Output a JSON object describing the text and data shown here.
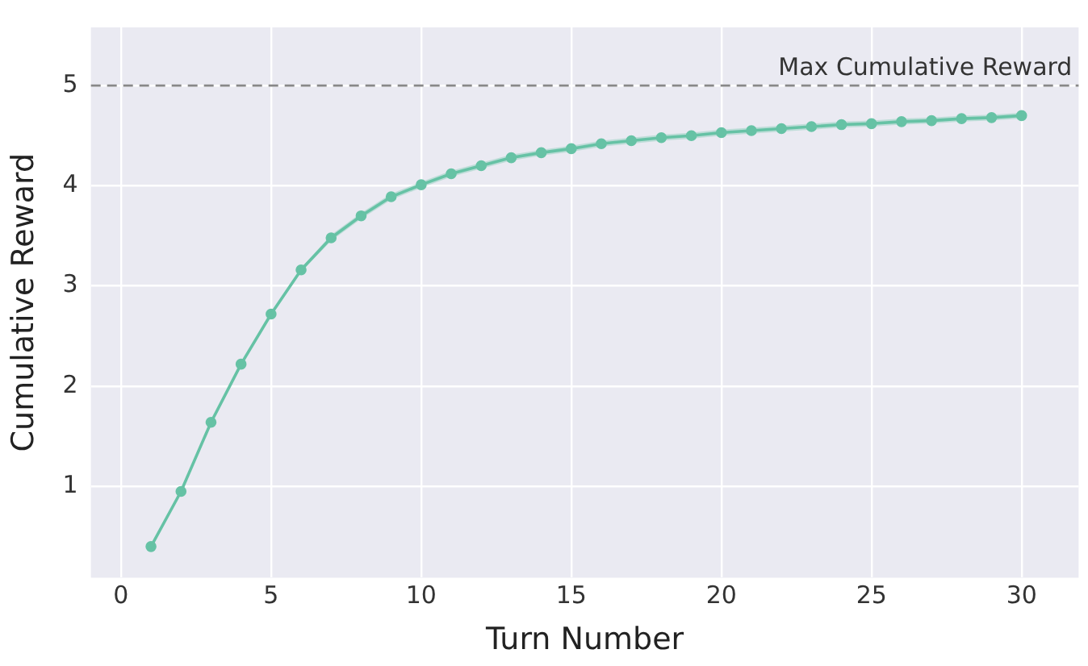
{
  "chart_data": {
    "type": "line",
    "xlabel": "Turn Number",
    "ylabel": "Cumulative Reward",
    "x": [
      1,
      2,
      3,
      4,
      5,
      6,
      7,
      8,
      9,
      10,
      11,
      12,
      13,
      14,
      15,
      16,
      17,
      18,
      19,
      20,
      21,
      22,
      23,
      24,
      25,
      26,
      27,
      28,
      29,
      30
    ],
    "series": [
      {
        "color": "#66c2a5",
        "values": [
          0.4,
          0.95,
          1.64,
          2.22,
          2.72,
          3.16,
          3.48,
          3.7,
          3.89,
          4.01,
          4.12,
          4.2,
          4.28,
          4.33,
          4.37,
          4.42,
          4.45,
          4.48,
          4.5,
          4.53,
          4.55,
          4.57,
          4.59,
          4.61,
          4.62,
          4.64,
          4.65,
          4.67,
          4.68,
          4.7
        ],
        "lower": [
          0.38,
          0.93,
          1.62,
          2.2,
          2.7,
          3.14,
          3.45,
          3.67,
          3.86,
          3.98,
          4.09,
          4.17,
          4.25,
          4.3,
          4.34,
          4.39,
          4.42,
          4.45,
          4.47,
          4.5,
          4.52,
          4.54,
          4.56,
          4.58,
          4.59,
          4.61,
          4.62,
          4.64,
          4.65,
          4.67
        ],
        "upper": [
          0.42,
          0.97,
          1.66,
          2.24,
          2.74,
          3.18,
          3.51,
          3.73,
          3.92,
          4.04,
          4.15,
          4.23,
          4.31,
          4.36,
          4.4,
          4.45,
          4.48,
          4.51,
          4.53,
          4.56,
          4.58,
          4.6,
          4.62,
          4.64,
          4.65,
          4.67,
          4.68,
          4.7,
          4.71,
          4.73
        ]
      }
    ],
    "xlim": [
      -1,
      31.9
    ],
    "xticks": [
      0,
      5,
      10,
      15,
      20,
      25,
      30
    ],
    "ylim": [
      0.09,
      5.58
    ],
    "yticks": [
      1,
      2,
      3,
      4,
      5
    ],
    "ref_lines": [
      {
        "axis": "y",
        "value": 5,
        "label": "Max Cumulative Reward",
        "color": "#888888",
        "line_style": "dashed"
      }
    ],
    "grid": true,
    "marker": "circle",
    "line_style": "solid",
    "legend": false
  }
}
